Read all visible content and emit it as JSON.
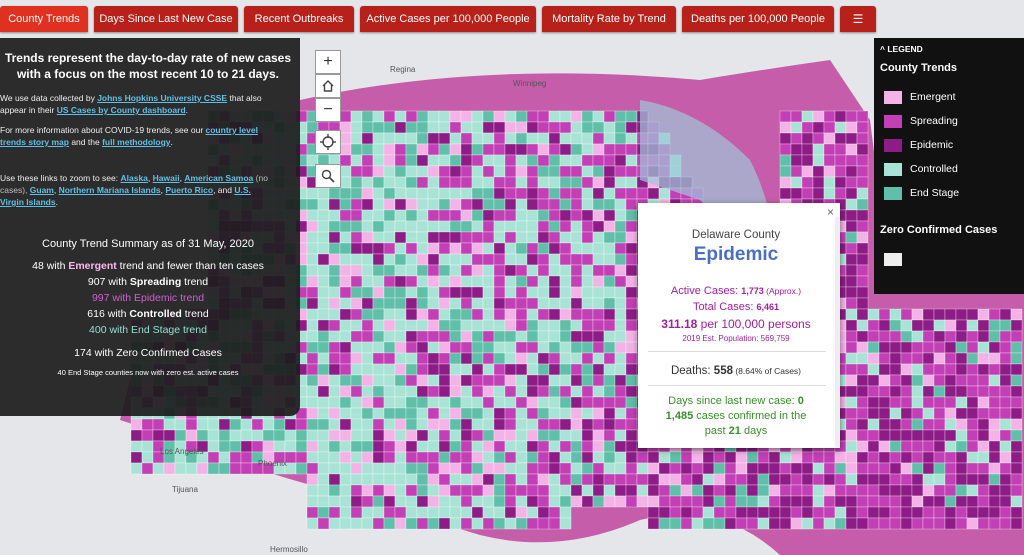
{
  "tabs": [
    "County Trends",
    "Days Since Last New Case",
    "Recent Outbreaks",
    "Active Cases per 100,000 People",
    "Mortality Rate by Trend",
    "Deaths per 100,000 People"
  ],
  "menu_icon": "☰",
  "info": {
    "intro": "Trends represent the day-to-day rate of new cases with a focus on the most recent 10 to 21 days.",
    "p1_pre": "We use data collected by ",
    "p1_link1": "Johns Hopkins University CSSE",
    "p1_mid": " that also appear in their ",
    "p1_link2": "US Cases by County dashboard",
    "p1_post": ".",
    "p2_pre": "For more information about COVID-19 trends, see our ",
    "p2_link1": "country level trends story map",
    "p2_mid": " and the ",
    "p2_link2": "full methodology",
    "p2_post": ".",
    "p3_pre": "Use these links to zoom to see: ",
    "p3_alaska": "Alaska",
    "p3_hawaii": "Hawaii",
    "p3_samoa": "American Samoa",
    "p3_samoa_note": " (no cases), ",
    "p3_guam": "Guam",
    "p3_nmi": "Northern Mariana Islands",
    "p3_pr": "Puerto Rico",
    "p3_and": ", and ",
    "p3_usvi": "U.S. Virgin Islands",
    "summary_title": "County Trend Summary as of 31 May, 2020",
    "sum_emergent_count": "48",
    "sum_emergent_pre": " with ",
    "sum_emergent_word": "Emergent",
    "sum_emergent_post": " trend and fewer than ten cases",
    "sum_spreading_count": "907",
    "sum_spreading_word": "Spreading",
    "sum_epidemic": "997 with Epidemic trend",
    "sum_controlled_count": "616",
    "sum_controlled_word": "Controlled",
    "sum_endstage": "400 with End Stage trend",
    "sum_with": " with ",
    "sum_trend": " trend",
    "sum_zero": "174 with Zero Confirmed Cases",
    "sum_note": "40 End Stage counties now with zero est. active cases"
  },
  "zoom_controls": {
    "plus": "+",
    "minus": "−"
  },
  "legend": {
    "heading": "LEGEND",
    "title": "County Trends",
    "items": [
      {
        "label": "Emergent",
        "color": "#f3b3e6"
      },
      {
        "label": "Spreading",
        "color": "#c23fb5"
      },
      {
        "label": "Epidemic",
        "color": "#8e1c86"
      },
      {
        "label": "Controlled",
        "color": "#a8e3d5"
      },
      {
        "label": "End Stage",
        "color": "#5fbfa8"
      }
    ],
    "zero_title": "Zero Confirmed Cases",
    "zero_color": "#eeeeee"
  },
  "popup": {
    "county": "Delaware County",
    "trend": "Epidemic",
    "active_label": "Active Cases: ",
    "active_value": "1,773",
    "active_note": " (Approx.)",
    "total_label": "Total Cases: ",
    "total_value": "6,461",
    "rate_value": "311.18",
    "rate_label": " per 100,000 persons",
    "population": "2019 Est. Population: 569,759",
    "deaths_label": "Deaths: ",
    "deaths_value": "558",
    "deaths_note": " (8.64% of Cases)",
    "days_label": "Days since last new case: ",
    "days_value": "0",
    "confirmed_value": "1,485",
    "confirmed_label": " cases confirmed in the",
    "past_pre": "past ",
    "past_value": "21",
    "past_post": " days",
    "close": "×"
  },
  "map_labels": {
    "regina": "Regina",
    "winnipeg": "Winnipeg",
    "los_angeles": "Los Angeles",
    "phoenix": "Phoenix",
    "tijuana": "Tijuana",
    "hermosillo": "Hermosillo"
  }
}
